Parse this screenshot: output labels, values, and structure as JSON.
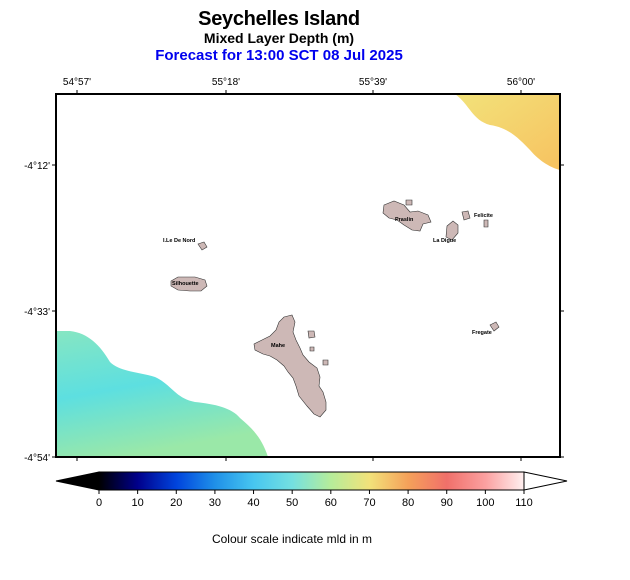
{
  "header": {
    "title": "Seychelles Island",
    "subtitle": "Mixed Layer Depth (m)",
    "forecast": "Forecast for  13:00 SCT 08 Jul 2025"
  },
  "map": {
    "lon_labels": [
      "54°57'",
      "55°18'",
      "55°39'",
      "56°00'"
    ],
    "lat_labels": [
      "-4°12'",
      "-4°33'",
      "-4°54'"
    ],
    "islands": [
      {
        "name": "Praslin"
      },
      {
        "name": "Felicite"
      },
      {
        "name": "La Digue"
      },
      {
        "name": "I.Le De Nord"
      },
      {
        "name": "Silhouette"
      },
      {
        "name": "Mahe"
      },
      {
        "name": "Fregate"
      }
    ],
    "land_color": "#cdb8b6",
    "sea_color": "#ffffff"
  },
  "colorbar": {
    "ticks": [
      "0",
      "10",
      "20",
      "30",
      "40",
      "50",
      "60",
      "70",
      "80",
      "90",
      "100",
      "110"
    ],
    "stops": [
      "#000000",
      "#00008b",
      "#0044dd",
      "#1f90e8",
      "#47c6f0",
      "#74e0e0",
      "#b6ec9a",
      "#f2e27a",
      "#f5a15a",
      "#f0706a",
      "#fba0a0",
      "#fff0f0"
    ],
    "caption": "Colour scale indicate mld in m"
  }
}
